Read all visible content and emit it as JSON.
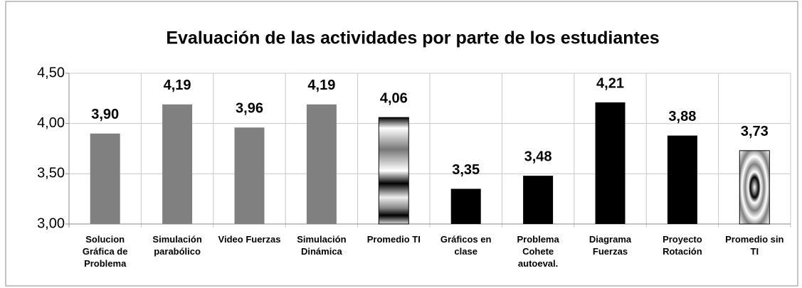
{
  "chart_data": {
    "type": "bar",
    "title": "Evaluación de las actividades por parte de los estudiantes",
    "categories": [
      "Solucion Gráfica de Problema",
      "Simulación parabólico",
      "Video Fuerzas",
      "Simulación Dinámica",
      "Promedio TI",
      "Gráficos en clase",
      "Problema Cohete autoeval.",
      "Diagrama Fuerzas",
      "Proyecto Rotación",
      "Promedio sin TI"
    ],
    "values": [
      3.9,
      4.19,
      3.96,
      4.19,
      4.06,
      3.35,
      3.48,
      4.21,
      3.88,
      3.73
    ],
    "value_labels": [
      "3,90",
      "4,19",
      "3,96",
      "4,19",
      "4,06",
      "3,35",
      "3,48",
      "4,21",
      "3,88",
      "3,73"
    ],
    "colors": [
      "#808080",
      "#808080",
      "#808080",
      "#808080",
      "#808080",
      "#000000",
      "#000000",
      "#000000",
      "#000000",
      "#808080"
    ],
    "patterned": [
      false,
      false,
      false,
      false,
      true,
      false,
      false,
      false,
      false,
      true
    ],
    "ylim": [
      3,
      4.5
    ],
    "yticks": [
      {
        "value": 3,
        "label": "3,00"
      },
      {
        "value": 3.5,
        "label": "3,50"
      },
      {
        "value": 4,
        "label": "4,00"
      },
      {
        "value": 4.5,
        "label": "4,50"
      }
    ],
    "grid": true
  }
}
